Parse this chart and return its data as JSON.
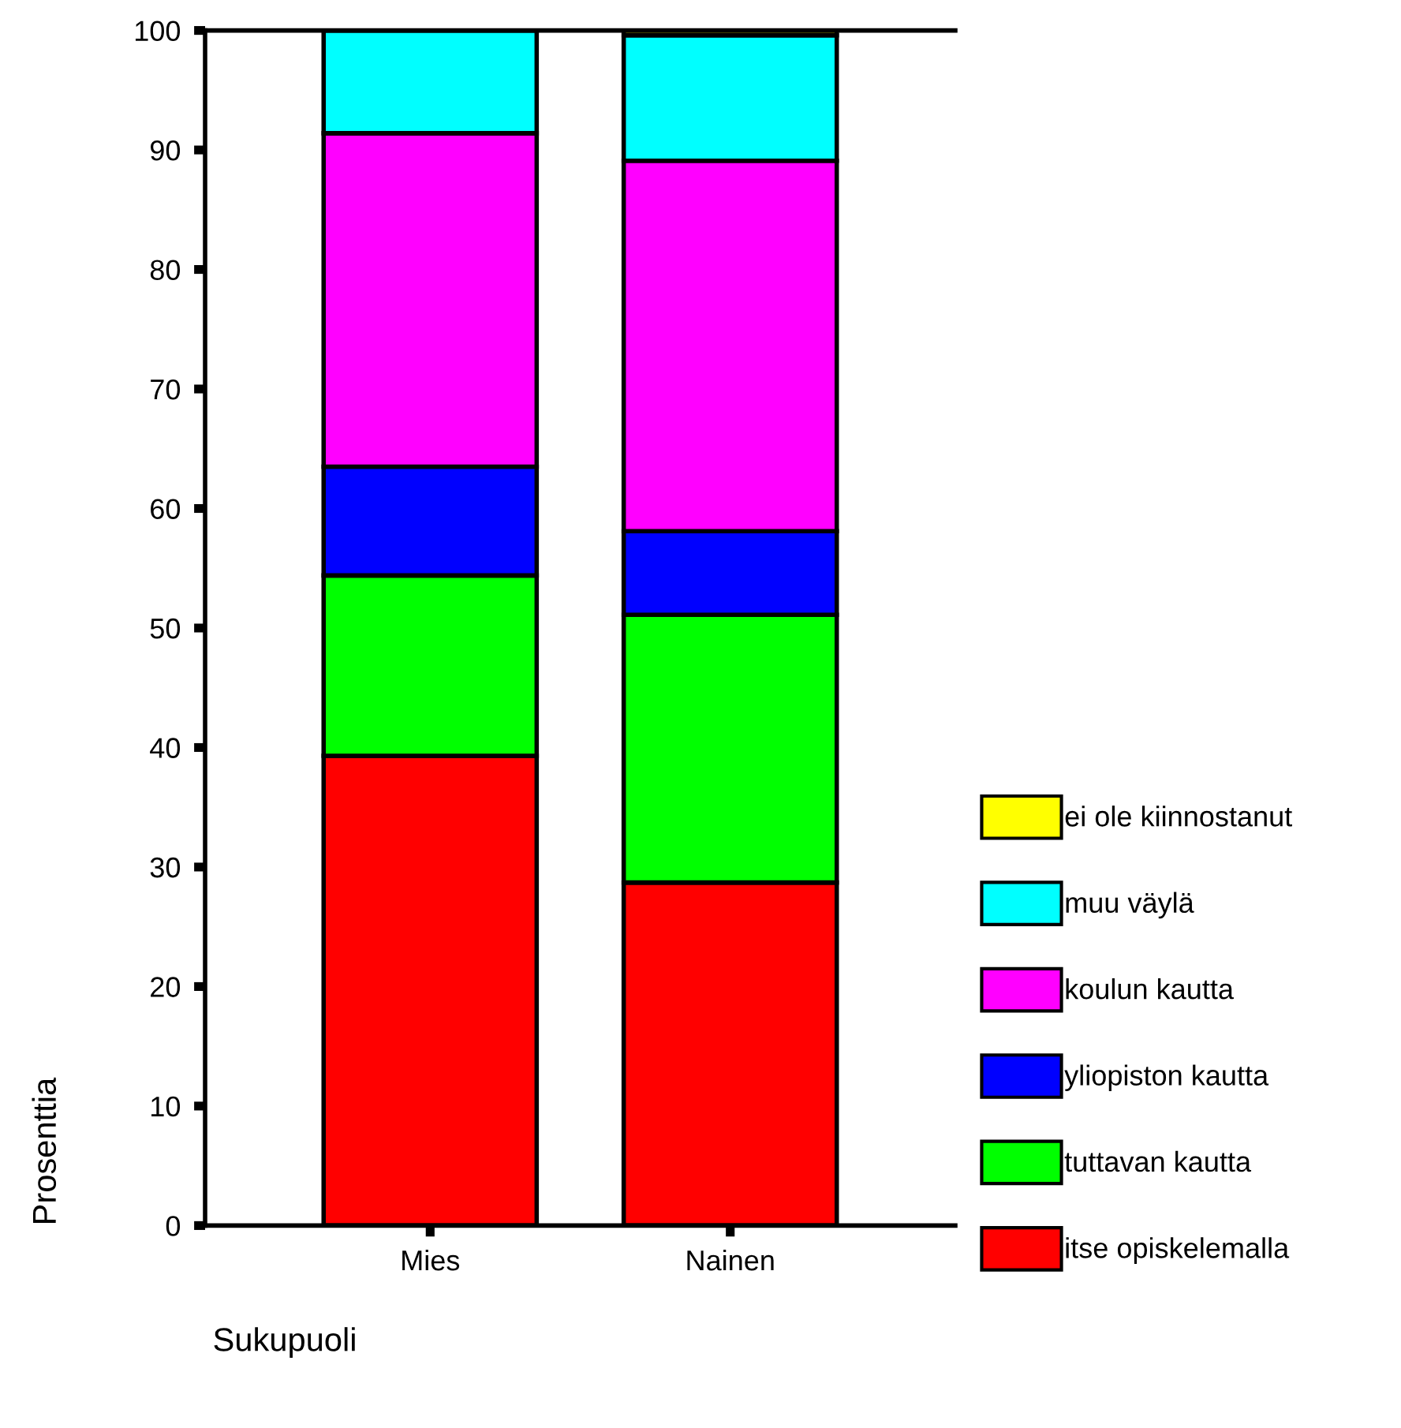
{
  "chart_data": {
    "type": "bar",
    "stacked": true,
    "xlabel": "Sukupuoli",
    "ylabel": "Prosenttia",
    "categories": [
      "Mies",
      "Nainen"
    ],
    "series": [
      {
        "name": "itse opiskelemalla",
        "color": "#ff0000",
        "values": [
          39.3,
          28.7
        ]
      },
      {
        "name": "tuttavan kautta",
        "color": "#00ff00",
        "values": [
          15.1,
          22.4
        ]
      },
      {
        "name": "yliopiston kautta",
        "color": "#0000ff",
        "values": [
          9.1,
          7.0
        ]
      },
      {
        "name": "koulun kautta",
        "color": "#ff00ff",
        "values": [
          27.9,
          31.0
        ]
      },
      {
        "name": "muu väylä",
        "color": "#00ffff",
        "values": [
          8.6,
          10.5
        ]
      },
      {
        "name": "ei ole kiinnostanut",
        "color": "#ffff00",
        "values": [
          0,
          0.4
        ]
      }
    ],
    "ylim": [
      0,
      100
    ],
    "yticks": [
      0,
      10,
      20,
      30,
      40,
      50,
      60,
      70,
      80,
      90,
      100
    ],
    "grid": false,
    "legend": "right"
  }
}
